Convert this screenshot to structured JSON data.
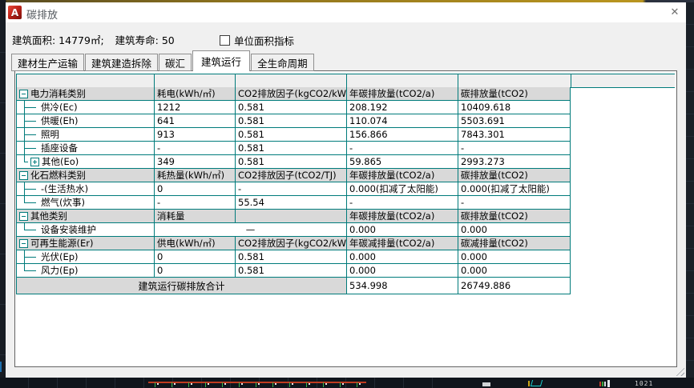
{
  "window": {
    "title": "碳排放",
    "logo_letter": "A",
    "close_glyph": "✕"
  },
  "info": {
    "building_area": "建筑面积: 14779㎡;",
    "building_life": "建筑寿命: 50",
    "unit_checkbox_label": "单位面积指标",
    "unit_checkbox_checked": false
  },
  "tabs": [
    {
      "label": "建材生产运输",
      "active": false
    },
    {
      "label": "建筑建造拆除",
      "active": false
    },
    {
      "label": "碳汇",
      "active": false
    },
    {
      "label": "建筑运行",
      "active": true
    },
    {
      "label": "全生命周期",
      "active": false
    }
  ],
  "table": {
    "rows": [
      {
        "kind": "section",
        "box": "minus",
        "label": "电力消耗类别",
        "cells": [
          "耗电(kWh/㎡)",
          "CO2排放因子(kgCO2/kWh)",
          "年碳排放量(tCO2/a)",
          "碳排放量(tCO2)"
        ]
      },
      {
        "kind": "child",
        "tree": "mid",
        "label": "供冷(Ec)",
        "cells": [
          "1212",
          "0.581",
          "208.192",
          "10409.618"
        ]
      },
      {
        "kind": "child",
        "tree": "mid",
        "label": "供暖(Eh)",
        "cells": [
          "641",
          "0.581",
          "110.074",
          "5503.691"
        ]
      },
      {
        "kind": "child",
        "tree": "mid",
        "label": "照明",
        "cells": [
          "913",
          "0.581",
          "156.866",
          "7843.301"
        ]
      },
      {
        "kind": "child",
        "tree": "mid",
        "label": "插座设备",
        "cells": [
          "-",
          "0.581",
          "-",
          "-"
        ]
      },
      {
        "kind": "child",
        "tree": "last",
        "box": "plus",
        "label": "其他(Eo)",
        "cells": [
          "349",
          "0.581",
          "59.865",
          "2993.273"
        ]
      },
      {
        "kind": "section",
        "box": "minus",
        "label": "化石燃料类别",
        "cells": [
          "耗热量(kWh/㎡)",
          "CO2排放因子(tCO2/TJ)",
          "年碳排放量(tCO2/a)",
          "碳排放量(tCO2)"
        ]
      },
      {
        "kind": "child",
        "tree": "mid",
        "label": "-(生活热水)",
        "cells": [
          "0",
          "-",
          "0.000(扣减了太阳能)",
          "0.000(扣减了太阳能)"
        ]
      },
      {
        "kind": "child",
        "tree": "last",
        "label": "燃气(炊事)",
        "cells": [
          "-",
          "55.54",
          "-",
          "-"
        ]
      },
      {
        "kind": "section",
        "box": "minus",
        "label": "其他类别",
        "cells": [
          "消耗量",
          "",
          "年碳排放量(tCO2/a)",
          "碳排放量(tCO2)"
        ]
      },
      {
        "kind": "child",
        "tree": "last",
        "label": "设备安装维护",
        "merged23": "—",
        "cells": [
          "0.000",
          "0.000"
        ]
      },
      {
        "kind": "section",
        "box": "minus",
        "label": "可再生能源(Er)",
        "cells": [
          "供电(kWh/㎡)",
          "CO2排放因子(kgCO2/kWh)",
          "年碳减排量(tCO2/a)",
          "碳减排量(tCO2)"
        ]
      },
      {
        "kind": "child",
        "tree": "mid",
        "label": "光伏(Ep)",
        "cells": [
          "0",
          "0.581",
          "0.000",
          "0.000"
        ]
      },
      {
        "kind": "child",
        "tree": "last",
        "label": "风力(Ep)",
        "cells": [
          "0",
          "0.581",
          "0.000",
          "0.000"
        ]
      },
      {
        "kind": "total",
        "label": "建筑运行碳排放合计",
        "cells": [
          "534.998",
          "26749.886"
        ]
      }
    ]
  },
  "background": {
    "bottom_text": "1021"
  },
  "colors": {
    "grid_teal": "#007b7b",
    "section_row_bg": "#d9d9d9",
    "dialog_bg": "#f0f0f0",
    "titlebar_bg": "#ffffff",
    "top_accent_gold": "#b8941f",
    "logo_red": "#c0251a",
    "cad_background": "#171c23"
  }
}
